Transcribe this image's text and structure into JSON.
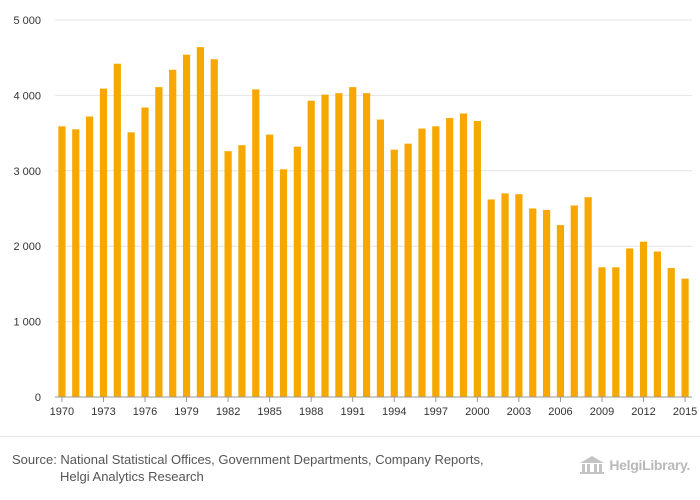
{
  "chart_data": {
    "type": "bar",
    "title": "",
    "xlabel": "",
    "ylabel": "",
    "ylim": [
      0,
      5000
    ],
    "y_ticks": [
      0,
      1000,
      2000,
      3000,
      4000,
      5000
    ],
    "y_tick_labels": [
      "0",
      "1 000",
      "2 000",
      "3 000",
      "4 000",
      "5 000"
    ],
    "grid": true,
    "bar_color": "#F7A800",
    "categories": [
      "1970",
      "1971",
      "1972",
      "1973",
      "1974",
      "1975",
      "1976",
      "1977",
      "1978",
      "1979",
      "1980",
      "1981",
      "1982",
      "1983",
      "1984",
      "1985",
      "1986",
      "1987",
      "1988",
      "1989",
      "1990",
      "1991",
      "1992",
      "1993",
      "1994",
      "1995",
      "1996",
      "1997",
      "1998",
      "1999",
      "2000",
      "2001",
      "2002",
      "2003",
      "2004",
      "2005",
      "2006",
      "2007",
      "2008",
      "2009",
      "2010",
      "2011",
      "2012",
      "2013",
      "2014",
      "2015"
    ],
    "x_tick_labels": [
      "1970",
      "1973",
      "1976",
      "1979",
      "1982",
      "1985",
      "1988",
      "1991",
      "1994",
      "1997",
      "2000",
      "2003",
      "2006",
      "2009",
      "2012",
      "2015"
    ],
    "values": [
      3590,
      3550,
      3720,
      4090,
      4420,
      3510,
      3840,
      4110,
      4340,
      4540,
      4640,
      4480,
      3260,
      3340,
      4080,
      3480,
      3020,
      3320,
      3930,
      4010,
      4030,
      4110,
      4030,
      3680,
      3280,
      3360,
      3560,
      3590,
      3700,
      3760,
      3660,
      2620,
      2700,
      2690,
      2500,
      2480,
      2280,
      2540,
      2650,
      1720,
      1720,
      1970,
      2060,
      1930,
      1710,
      1570
    ]
  },
  "footer": {
    "source_line1": "Source: National Statistical Offices, Government Departments, Company Reports,",
    "source_line2": "Helgi Analytics Research",
    "logo_text": "HelgiLibrary."
  }
}
